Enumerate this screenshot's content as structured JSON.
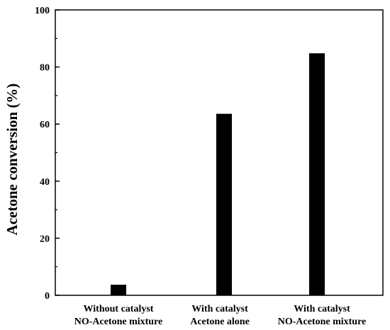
{
  "chart_data": {
    "type": "bar",
    "title": "",
    "xlabel": "",
    "ylabel": "Acetone conversion (%)",
    "ylim": [
      0,
      100
    ],
    "yticks": [
      0,
      20,
      40,
      60,
      80,
      100
    ],
    "categories": [
      [
        "Without catalyst",
        "NO-Acetone mixture"
      ],
      [
        "With catalyst",
        "Acetone alone"
      ],
      [
        "With catalyst",
        "NO-Acetone mixture"
      ]
    ],
    "values": [
      3.7,
      63.6,
      84.8
    ],
    "bar_color": "#000000",
    "grid": false,
    "legend": "none"
  }
}
